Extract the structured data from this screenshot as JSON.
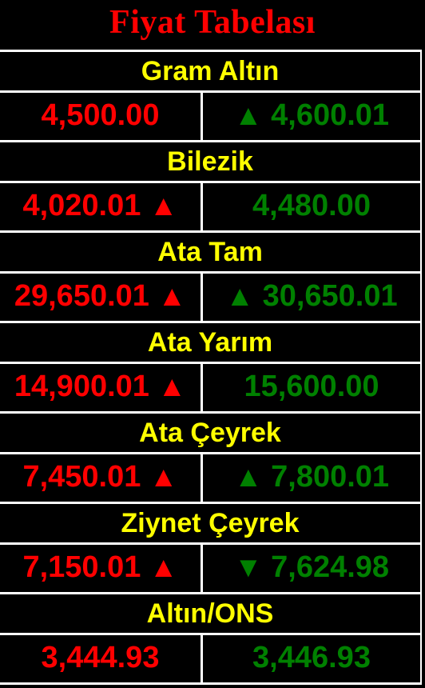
{
  "title": "Fiyat Tabelası",
  "colors": {
    "background": "#000000",
    "title": "#ff0000",
    "name": "#ffff00",
    "buy": "#ff0000",
    "sell": "#008000",
    "grid": "#ffffff"
  },
  "items": [
    {
      "name": "Gram Altın",
      "buy": "4,500.00",
      "buy_arrow": "",
      "sell": "4,600.01",
      "sell_arrow": "▲"
    },
    {
      "name": "Bilezik",
      "buy": "4,020.01",
      "buy_arrow": "▲",
      "sell": "4,480.00",
      "sell_arrow": ""
    },
    {
      "name": "Ata Tam",
      "buy": "29,650.01",
      "buy_arrow": "▲",
      "sell": "30,650.01",
      "sell_arrow": "▲"
    },
    {
      "name": "Ata Yarım",
      "buy": "14,900.01",
      "buy_arrow": "▲",
      "sell": "15,600.00",
      "sell_arrow": ""
    },
    {
      "name": "Ata Çeyrek",
      "buy": "7,450.01",
      "buy_arrow": "▲",
      "sell": "7,800.01",
      "sell_arrow": "▲"
    },
    {
      "name": "Ziynet Çeyrek",
      "buy": "7,150.01",
      "buy_arrow": "▲",
      "sell": "7,624.98",
      "sell_arrow": "▼"
    },
    {
      "name": "Altın/ONS",
      "buy": "3,444.93",
      "buy_arrow": "",
      "sell": "3,446.93",
      "sell_arrow": ""
    }
  ]
}
